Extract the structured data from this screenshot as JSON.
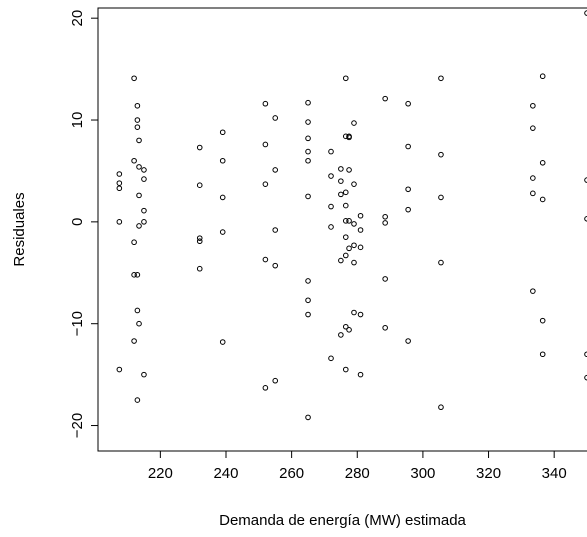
{
  "chart_data": {
    "type": "scatter",
    "title": "",
    "xlabel": "Demanda de energía (MW) estimada",
    "ylabel": "Residuales",
    "xlim": [
      201,
      350
    ],
    "ylim": [
      -22.5,
      21
    ],
    "xticks": [
      220,
      240,
      260,
      280,
      300,
      320,
      340
    ],
    "yticks": [
      -20,
      -10,
      0,
      10,
      20
    ],
    "x_tick_labels": [
      "220",
      "240",
      "260",
      "280",
      "300",
      "320",
      "340"
    ],
    "y_tick_labels": [
      "−20",
      "−10",
      "0",
      "10",
      "20"
    ],
    "grid": false,
    "legend": "none",
    "marker": "open-circle",
    "color": "#000000",
    "points": [
      [
        207.5,
        4.7
      ],
      [
        207.5,
        3.8
      ],
      [
        207.5,
        3.3
      ],
      [
        207.5,
        0.0
      ],
      [
        207.5,
        -14.5
      ],
      [
        212.0,
        14.1
      ],
      [
        212.0,
        6.0
      ],
      [
        212.0,
        -2.0
      ],
      [
        212.0,
        -5.2
      ],
      [
        212.0,
        -11.7
      ],
      [
        213.0,
        11.4
      ],
      [
        213.0,
        10.0
      ],
      [
        213.0,
        9.3
      ],
      [
        213.0,
        -5.2
      ],
      [
        213.0,
        -8.7
      ],
      [
        213.0,
        -17.5
      ],
      [
        213.5,
        8.0
      ],
      [
        213.5,
        5.4
      ],
      [
        213.5,
        2.6
      ],
      [
        213.5,
        -0.4
      ],
      [
        213.5,
        -10.0
      ],
      [
        215.0,
        5.1
      ],
      [
        215.0,
        4.2
      ],
      [
        215.0,
        1.1
      ],
      [
        215.0,
        0.0
      ],
      [
        215.0,
        -15.0
      ],
      [
        232.0,
        7.3
      ],
      [
        232.0,
        3.6
      ],
      [
        232.0,
        -1.6
      ],
      [
        232.0,
        -1.9
      ],
      [
        232.0,
        -4.6
      ],
      [
        239.0,
        8.8
      ],
      [
        239.0,
        6.0
      ],
      [
        239.0,
        2.4
      ],
      [
        239.0,
        -1.0
      ],
      [
        239.0,
        -11.8
      ],
      [
        252.0,
        11.6
      ],
      [
        252.0,
        7.6
      ],
      [
        252.0,
        3.7
      ],
      [
        252.0,
        -3.7
      ],
      [
        252.0,
        -16.3
      ],
      [
        255.0,
        10.2
      ],
      [
        255.0,
        5.1
      ],
      [
        255.0,
        -0.8
      ],
      [
        255.0,
        -4.3
      ],
      [
        255.0,
        -15.6
      ],
      [
        265.0,
        11.7
      ],
      [
        265.0,
        9.8
      ],
      [
        265.0,
        8.2
      ],
      [
        265.0,
        6.9
      ],
      [
        265.0,
        6.0
      ],
      [
        265.0,
        2.5
      ],
      [
        265.0,
        -5.8
      ],
      [
        265.0,
        -7.7
      ],
      [
        265.0,
        -9.1
      ],
      [
        265.0,
        -19.2
      ],
      [
        272.0,
        6.9
      ],
      [
        272.0,
        4.5
      ],
      [
        272.0,
        1.5
      ],
      [
        272.0,
        -0.5
      ],
      [
        272.0,
        -13.4
      ],
      [
        275.0,
        5.2
      ],
      [
        275.0,
        4.0
      ],
      [
        275.0,
        2.7
      ],
      [
        275.0,
        -3.8
      ],
      [
        275.0,
        -11.1
      ],
      [
        276.5,
        14.1
      ],
      [
        276.5,
        8.4
      ],
      [
        276.5,
        2.9
      ],
      [
        276.5,
        1.6
      ],
      [
        276.5,
        0.1
      ],
      [
        276.5,
        -1.5
      ],
      [
        276.5,
        -3.3
      ],
      [
        276.5,
        -10.3
      ],
      [
        276.5,
        -14.5
      ],
      [
        277.5,
        8.4
      ],
      [
        277.5,
        8.3
      ],
      [
        277.5,
        5.1
      ],
      [
        277.5,
        0.1
      ],
      [
        277.5,
        -2.6
      ],
      [
        277.5,
        -10.6
      ],
      [
        279.0,
        9.7
      ],
      [
        279.0,
        3.7
      ],
      [
        279.0,
        -0.2
      ],
      [
        279.0,
        -2.3
      ],
      [
        279.0,
        -4.0
      ],
      [
        279.0,
        -8.9
      ],
      [
        281.0,
        0.6
      ],
      [
        281.0,
        -0.8
      ],
      [
        281.0,
        -2.5
      ],
      [
        281.0,
        -9.1
      ],
      [
        281.0,
        -15.0
      ],
      [
        288.5,
        12.1
      ],
      [
        288.5,
        0.5
      ],
      [
        288.5,
        -0.1
      ],
      [
        288.5,
        -5.6
      ],
      [
        288.5,
        -10.4
      ],
      [
        295.5,
        11.6
      ],
      [
        295.5,
        7.4
      ],
      [
        295.5,
        3.2
      ],
      [
        295.5,
        1.2
      ],
      [
        295.5,
        -11.7
      ],
      [
        305.5,
        14.1
      ],
      [
        305.5,
        6.6
      ],
      [
        305.5,
        2.4
      ],
      [
        305.5,
        -4.0
      ],
      [
        305.5,
        -18.2
      ],
      [
        333.5,
        11.4
      ],
      [
        333.5,
        9.2
      ],
      [
        333.5,
        4.3
      ],
      [
        333.5,
        2.8
      ],
      [
        333.5,
        -6.8
      ],
      [
        336.5,
        14.3
      ],
      [
        336.5,
        5.8
      ],
      [
        336.5,
        2.2
      ],
      [
        336.5,
        -9.7
      ],
      [
        336.5,
        -13.0
      ],
      [
        350.0,
        20.5
      ],
      [
        350.0,
        4.1
      ],
      [
        350.0,
        0.3
      ],
      [
        350.0,
        -13.0
      ],
      [
        350.0,
        -15.3
      ]
    ]
  }
}
